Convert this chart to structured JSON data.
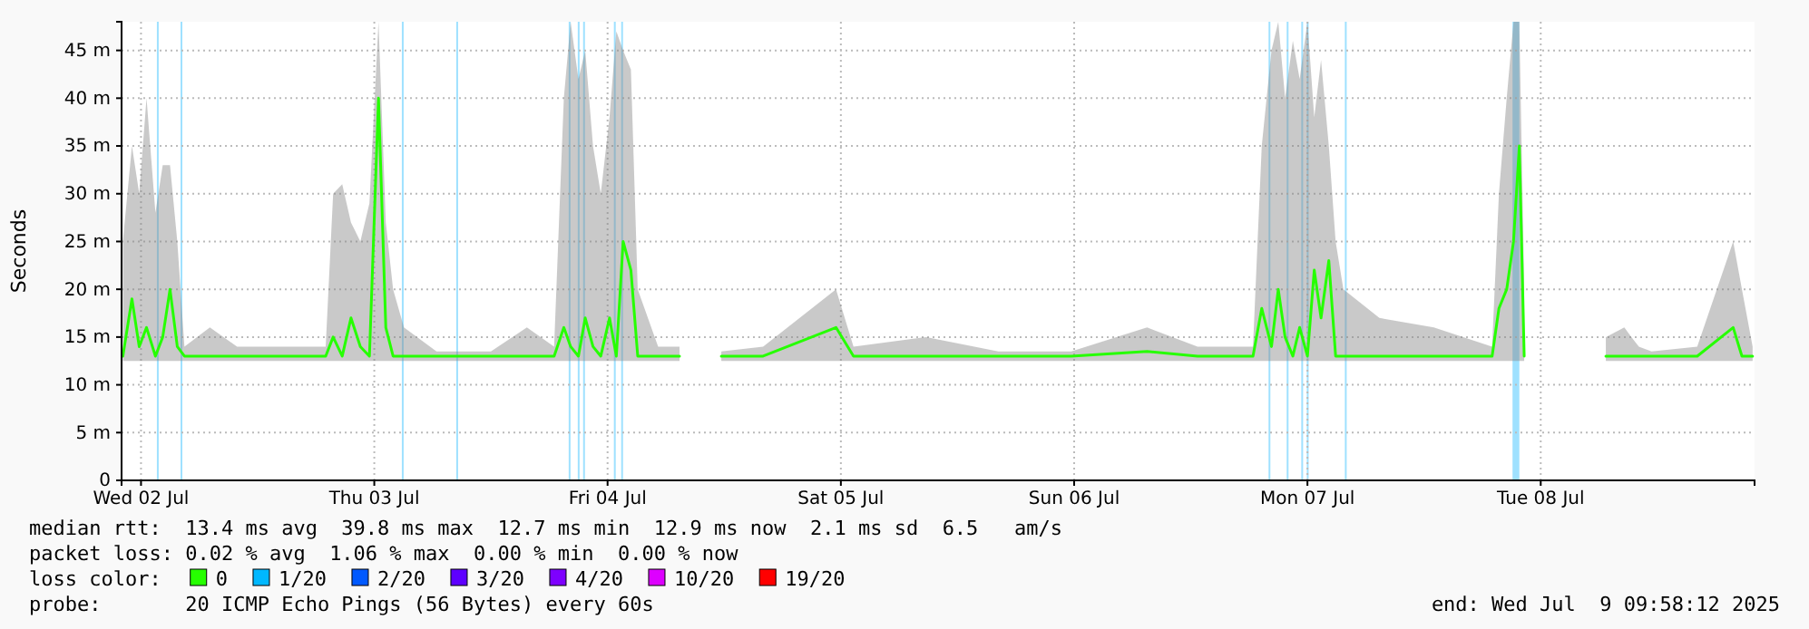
{
  "chart_data": {
    "type": "line",
    "ylabel": "Seconds",
    "legend_title": "loss color:",
    "legend": "bottom",
    "grid": true,
    "xlim": [
      "2025-07-02T10:00",
      "2025-07-09T10:00"
    ],
    "xticks": [
      {
        "value": "2025-07-02T12:00",
        "label": "Wed 02 Jul"
      },
      {
        "value": "2025-07-03T12:00",
        "label": "Thu 03 Jul"
      },
      {
        "value": "2025-07-04T12:00",
        "label": "Fri 04 Jul"
      },
      {
        "value": "2025-07-05T12:00",
        "label": "Sat 05 Jul"
      },
      {
        "value": "2025-07-06T12:00",
        "label": "Sun 06 Jul"
      },
      {
        "value": "2025-07-07T12:00",
        "label": "Mon 07 Jul"
      },
      {
        "value": "2025-07-08T12:00",
        "label": "Tue 08 Jul"
      }
    ],
    "ylim": [
      0,
      48
    ],
    "yticks": [
      0,
      {
        "value": 5,
        "label": "5 m"
      },
      {
        "value": 10,
        "label": "10 m"
      },
      {
        "value": 15,
        "label": "15 m"
      },
      {
        "value": 20,
        "label": "20 m"
      },
      {
        "value": 25,
        "label": "25 m"
      },
      {
        "value": 30,
        "label": "30 m"
      },
      {
        "value": 35,
        "label": "35 m"
      },
      {
        "value": 40,
        "label": "40 m"
      },
      {
        "value": 45,
        "label": "45 m"
      }
    ],
    "x": [
      "2025-07-02T10:08",
      "2025-07-02T11:04",
      "2025-07-02T11:49",
      "2025-07-02T12:34",
      "2025-07-02T13:29",
      "2025-07-02T14:14",
      "2025-07-02T14:59",
      "2025-07-02T15:44",
      "2025-07-02T16:28",
      "2025-07-02T19:05",
      "2025-07-02T21:53",
      "2025-07-03T01:37",
      "2025-07-03T07:00",
      "2025-07-03T07:46",
      "2025-07-03T08:42",
      "2025-07-03T09:36",
      "2025-07-03T10:34",
      "2025-07-03T11:30",
      "2025-07-03T12:26",
      "2025-07-03T13:11",
      "2025-07-03T13:56",
      "2025-07-03T15:03",
      "2025-07-03T18:24",
      "2025-07-04T00:00",
      "2025-07-04T03:42",
      "2025-07-04T06:30",
      "2025-07-04T07:30",
      "2025-07-04T08:12",
      "2025-07-04T09:00",
      "2025-07-04T09:42",
      "2025-07-04T10:30",
      "2025-07-04T11:18",
      "2025-07-04T12:12",
      "2025-07-04T12:54",
      "2025-07-04T13:36",
      "2025-07-04T14:24",
      "2025-07-04T15:06",
      "2025-07-04T17:12",
      "2025-07-04T19:24",
      "2025-07-04T19:36",
      "2025-07-04T23:42",
      "2025-07-05T04:00",
      "2025-07-05T11:30",
      "2025-07-05T13:18",
      "2025-07-05T20:48",
      "2025-07-06T04:12",
      "2025-07-06T11:42",
      "2025-07-06T19:30",
      "2025-07-07T00:42",
      "2025-07-07T06:24",
      "2025-07-07T07:18",
      "2025-07-07T08:18",
      "2025-07-07T09:00",
      "2025-07-07T09:42",
      "2025-07-07T10:30",
      "2025-07-07T11:12",
      "2025-07-07T12:00",
      "2025-07-07T12:42",
      "2025-07-07T13:24",
      "2025-07-07T14:12",
      "2025-07-07T14:54",
      "2025-07-07T15:42",
      "2025-07-07T19:24",
      "2025-07-08T01:00",
      "2025-07-08T07:00",
      "2025-07-08T07:42",
      "2025-07-08T08:30",
      "2025-07-08T09:12",
      "2025-07-08T09:48",
      "2025-07-08T10:18",
      "2025-07-08T10:42",
      "2025-07-08T18:42",
      "2025-07-08T19:40",
      "2025-07-08T20:36",
      "2025-07-08T21:20",
      "2025-07-08T22:06",
      "2025-07-08T23:24",
      "2025-07-09T04:06",
      "2025-07-09T07:48",
      "2025-07-09T08:42",
      "2025-07-09T09:48"
    ],
    "series": [
      {
        "name": "0",
        "color": "#26ff00",
        "values": [
          13,
          19,
          14,
          16,
          13,
          15,
          20,
          14,
          13,
          13,
          13,
          13,
          13,
          15,
          13,
          17,
          14,
          13,
          40,
          16,
          13,
          13,
          13,
          13,
          13,
          13,
          16,
          14,
          13,
          17,
          14,
          13,
          17,
          13,
          25,
          22,
          13,
          13,
          13,
          null,
          13,
          13,
          16,
          13,
          13,
          13,
          13,
          13.5,
          13,
          13,
          18,
          14,
          20,
          15,
          13,
          16,
          13,
          22,
          17,
          23,
          13,
          13,
          13,
          13,
          13,
          18,
          20,
          25,
          35,
          13,
          null,
          13,
          13,
          13,
          13,
          13,
          13,
          13,
          16,
          13,
          13
        ],
        "lower": [
          12.5,
          12.5,
          12.5,
          12.5,
          12.5,
          12.5,
          12.5,
          12.5,
          12.5,
          12.5,
          12.5,
          12.5,
          12.5,
          12.5,
          12.5,
          12.5,
          12.5,
          12.5,
          12.5,
          12.5,
          12.5,
          12.5,
          12.5,
          12.5,
          12.5,
          12.5,
          12.5,
          12.5,
          12.5,
          12.5,
          12.5,
          12.5,
          12.5,
          12.5,
          12.5,
          12.5,
          12.5,
          12.5,
          12.5,
          null,
          12.5,
          12.5,
          12.5,
          12.5,
          12.5,
          12.5,
          12.5,
          12.5,
          12.5,
          12.5,
          12.5,
          12.5,
          12.5,
          12.5,
          12.5,
          12.5,
          12.5,
          12.5,
          12.5,
          12.5,
          12.5,
          12.5,
          12.5,
          12.5,
          12.5,
          12.5,
          12.5,
          12.5,
          12.5,
          12.5,
          null,
          12.5,
          12.5,
          12.5,
          12.5,
          12.5,
          12.5,
          12.5,
          12.5,
          12.5,
          12.5
        ],
        "upper": [
          25,
          35,
          30,
          40,
          28,
          33,
          33,
          25,
          14,
          16,
          14,
          14,
          14,
          30,
          31,
          27,
          25,
          29,
          48,
          27,
          20,
          16,
          13.5,
          13.5,
          16,
          14,
          40,
          48,
          42,
          45,
          35,
          30,
          38,
          47,
          45,
          43,
          20,
          14,
          14,
          null,
          13.5,
          14,
          20,
          14,
          15,
          13.5,
          13.5,
          16,
          14,
          14,
          35,
          45,
          48,
          40,
          46,
          42,
          48,
          38,
          44,
          35,
          25,
          20,
          17,
          16,
          14,
          30,
          40,
          48,
          48,
          20,
          null,
          15,
          15.5,
          16,
          15,
          14,
          13.5,
          14,
          25,
          20,
          14
        ]
      },
      {
        "name": "1/20",
        "color": "#00b8ff",
        "values": [
          null,
          null,
          null,
          null,
          null,
          null,
          null,
          null,
          null,
          null,
          null,
          null,
          null,
          null,
          null,
          null,
          null,
          null,
          null,
          null,
          null,
          null,
          null,
          null,
          null,
          null,
          null,
          null,
          null,
          null,
          null,
          null,
          null,
          null,
          null,
          null,
          null,
          null,
          null,
          null,
          null,
          null,
          null,
          null,
          null,
          null,
          null,
          null,
          null,
          null,
          null,
          null,
          null,
          null,
          null,
          null,
          null,
          null,
          null,
          null,
          null,
          null,
          null,
          null,
          null,
          null,
          null,
          null,
          null,
          null,
          null,
          null,
          null,
          null,
          null,
          null,
          null,
          null,
          null,
          null,
          null
        ]
      },
      {
        "name": "2/20",
        "color": "#0059ff",
        "values": [
          null,
          null,
          null,
          null,
          null,
          null,
          null,
          null,
          null,
          null,
          null,
          null,
          null,
          null,
          null,
          null,
          null,
          null,
          null,
          null,
          null,
          null,
          null,
          null,
          null,
          null,
          null,
          null,
          null,
          null,
          null,
          null,
          null,
          null,
          null,
          null,
          null,
          null,
          null,
          null,
          null,
          null,
          null,
          null,
          null,
          null,
          null,
          null,
          null,
          null,
          null,
          null,
          null,
          null,
          null,
          null,
          null,
          null,
          null,
          null,
          null,
          null,
          null,
          null,
          null,
          null,
          null,
          null,
          null,
          null,
          null,
          null,
          null,
          null,
          null,
          null,
          null,
          null,
          null,
          null,
          null
        ]
      },
      {
        "name": "3/20",
        "color": "#5e00ff",
        "values": [
          null,
          null,
          null,
          null,
          null,
          null,
          null,
          null,
          null,
          null,
          null,
          null,
          null,
          null,
          null,
          null,
          null,
          null,
          null,
          null,
          null,
          null,
          null,
          null,
          null,
          null,
          null,
          null,
          null,
          null,
          null,
          null,
          null,
          null,
          null,
          null,
          null,
          null,
          null,
          null,
          null,
          null,
          null,
          null,
          null,
          null,
          null,
          null,
          null,
          null,
          null,
          null,
          null,
          null,
          null,
          null,
          null,
          null,
          null,
          null,
          null,
          null,
          null,
          null,
          null,
          null,
          null,
          null,
          null,
          null,
          null,
          null,
          null,
          null,
          null,
          null,
          null,
          null,
          null,
          null,
          null
        ]
      },
      {
        "name": "4/20",
        "color": "#7e00ff",
        "values": [
          null,
          null,
          null,
          null,
          null,
          null,
          null,
          null,
          null,
          null,
          null,
          null,
          null,
          null,
          null,
          null,
          null,
          null,
          null,
          null,
          null,
          null,
          null,
          null,
          null,
          null,
          null,
          null,
          null,
          null,
          null,
          null,
          null,
          null,
          null,
          null,
          null,
          null,
          null,
          null,
          null,
          null,
          null,
          null,
          null,
          null,
          null,
          null,
          null,
          null,
          null,
          null,
          null,
          null,
          null,
          null,
          null,
          null,
          null,
          null,
          null,
          null,
          null,
          null,
          null,
          null,
          null,
          null,
          null,
          null,
          null,
          null,
          null,
          null,
          null,
          null,
          null,
          null,
          null,
          null,
          null
        ]
      },
      {
        "name": "10/20",
        "color": "#dd00ff",
        "values": [
          null,
          null,
          null,
          null,
          null,
          null,
          null,
          null,
          null,
          null,
          null,
          null,
          null,
          null,
          null,
          null,
          null,
          null,
          null,
          null,
          null,
          null,
          null,
          null,
          null,
          null,
          null,
          null,
          null,
          null,
          null,
          null,
          null,
          null,
          null,
          null,
          null,
          null,
          null,
          null,
          null,
          null,
          null,
          null,
          null,
          null,
          null,
          null,
          null,
          null,
          null,
          null,
          null,
          null,
          null,
          null,
          null,
          null,
          null,
          null,
          null,
          null,
          null,
          null,
          null,
          null,
          null,
          null,
          null,
          null,
          null,
          null,
          null,
          null,
          null,
          null,
          null,
          null,
          null,
          null,
          null
        ]
      },
      {
        "name": "19/20",
        "color": "#ff0000",
        "values": [
          null,
          null,
          null,
          null,
          null,
          null,
          null,
          null,
          null,
          null,
          null,
          null,
          null,
          null,
          null,
          null,
          null,
          null,
          null,
          null,
          null,
          null,
          null,
          null,
          null,
          null,
          null,
          null,
          null,
          null,
          null,
          null,
          null,
          null,
          null,
          null,
          null,
          null,
          null,
          null,
          null,
          null,
          null,
          null,
          null,
          null,
          null,
          null,
          null,
          null,
          null,
          null,
          null,
          null,
          null,
          null,
          null,
          null,
          null,
          null,
          null,
          null,
          null,
          null,
          null,
          null,
          null,
          null,
          null,
          null,
          null,
          null,
          null,
          null,
          null,
          null,
          null,
          null,
          null,
          null,
          null
        ]
      }
    ],
    "bands": [
      {
        "axis": "x",
        "from": "2025-07-02T13:38",
        "to": "2025-07-02T13:43",
        "color": "#9fe1ff"
      },
      {
        "axis": "x",
        "from": "2025-07-02T16:04",
        "to": "2025-07-02T16:09",
        "color": "#9fe1ff"
      },
      {
        "axis": "x",
        "from": "2025-07-03T14:50",
        "to": "2025-07-03T14:55",
        "color": "#9fe1ff"
      },
      {
        "axis": "x",
        "from": "2025-07-03T20:26",
        "to": "2025-07-03T20:31",
        "color": "#9fe1ff"
      },
      {
        "axis": "x",
        "from": "2025-07-04T08:00",
        "to": "2025-07-04T08:05",
        "color": "#9fe1ff"
      },
      {
        "axis": "x",
        "from": "2025-07-04T08:56",
        "to": "2025-07-04T09:01",
        "color": "#9fe1ff"
      },
      {
        "axis": "x",
        "from": "2025-07-04T09:29",
        "to": "2025-07-04T09:34",
        "color": "#9fe1ff"
      },
      {
        "axis": "x",
        "from": "2025-07-04T12:39",
        "to": "2025-07-04T12:44",
        "color": "#9fe1ff"
      },
      {
        "axis": "x",
        "from": "2025-07-04T13:24",
        "to": "2025-07-04T13:29",
        "color": "#9fe1ff"
      },
      {
        "axis": "x",
        "from": "2025-07-07T08:00",
        "to": "2025-07-07T08:05",
        "color": "#9fe1ff"
      },
      {
        "axis": "x",
        "from": "2025-07-07T09:52",
        "to": "2025-07-07T09:57",
        "color": "#9fe1ff"
      },
      {
        "axis": "x",
        "from": "2025-07-07T11:22",
        "to": "2025-07-07T11:27",
        "color": "#9fe1ff"
      },
      {
        "axis": "x",
        "from": "2025-07-07T11:56",
        "to": "2025-07-07T12:01",
        "color": "#9fe1ff"
      },
      {
        "axis": "x",
        "from": "2025-07-07T15:51",
        "to": "2025-07-07T15:56",
        "color": "#9fe1ff"
      },
      {
        "axis": "x",
        "from": "2025-07-08T09:06",
        "to": "2025-07-08T09:48",
        "color": "#9fe1ff"
      }
    ],
    "annotations": [
      "median rtt:  13.4 ms avg  39.8 ms max  12.7 ms min  12.9 ms now  2.1 ms sd  6.5   am/s",
      "packet loss: 0.02 % avg  1.06 % max  0.00 % min  0.00 % now",
      "probe:       20 ICMP Echo Pings (56 Bytes) every 60s",
      "end: Wed Jul  9 09:58:12 2025"
    ]
  }
}
